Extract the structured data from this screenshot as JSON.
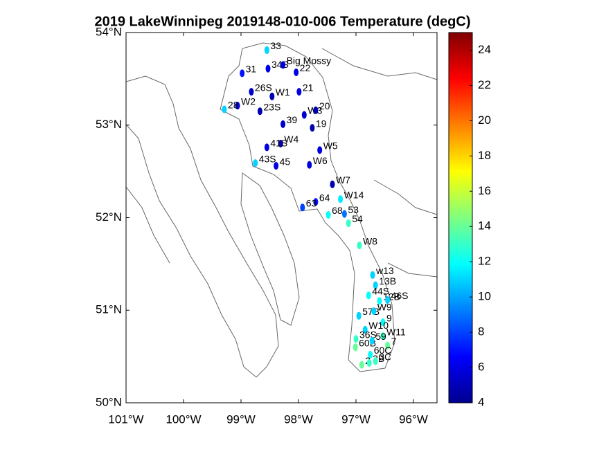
{
  "chart_data": {
    "type": "scatter",
    "title": "2019 LakeWinnipeg 2019148-010-006 Temperature (degC)",
    "xlim": [
      -101,
      -95.59
    ],
    "ylim": [
      50,
      54
    ],
    "xticks": [
      {
        "value": -101,
        "label": "101°W"
      },
      {
        "value": -100,
        "label": "100°W"
      },
      {
        "value": -99,
        "label": "99°W"
      },
      {
        "value": -98,
        "label": "98°W"
      },
      {
        "value": -97,
        "label": "97°W"
      },
      {
        "value": -96,
        "label": "96°W"
      }
    ],
    "yticks": [
      {
        "value": 50,
        "label": "50°N"
      },
      {
        "value": 51,
        "label": "51°N"
      },
      {
        "value": 52,
        "label": "52°N"
      },
      {
        "value": 53,
        "label": "53°N"
      },
      {
        "value": 54,
        "label": "54°N"
      }
    ],
    "clim": [
      4,
      25
    ],
    "cticks": [
      4,
      6,
      8,
      10,
      12,
      14,
      16,
      18,
      20,
      22,
      24
    ],
    "colormap": "jet",
    "point_labels": [
      "33",
      "34S",
      "Big Mossy",
      "22",
      "31",
      "26S",
      "W1",
      "21",
      "W2",
      "28",
      "23S",
      "W3",
      "20",
      "39",
      "19",
      "W4",
      "41S",
      "W5",
      "43S",
      "45",
      "W6",
      "W7",
      "W14",
      "64",
      "63",
      "68",
      "53",
      "54",
      "W8",
      "w13",
      "13B",
      "44S",
      "12B",
      "46S",
      "57B",
      "W9",
      "9",
      "W10",
      "W11",
      "36S",
      "60B",
      "59",
      "7",
      "60C",
      "2",
      "3B",
      "3C"
    ],
    "x": [
      -98.55,
      -98.53,
      -98.27,
      -98.04,
      -98.98,
      -98.82,
      -98.46,
      -97.99,
      -99.06,
      -99.29,
      -98.67,
      -97.9,
      -97.7,
      -98.27,
      -97.76,
      -98.31,
      -98.55,
      -97.63,
      -98.75,
      -98.39,
      -97.81,
      -97.41,
      -97.27,
      -97.7,
      -97.93,
      -97.48,
      -97.2,
      -97.13,
      -96.94,
      -96.71,
      -96.66,
      -96.78,
      -96.59,
      -96.45,
      -96.95,
      -96.69,
      -96.53,
      -96.84,
      -96.53,
      -97.0,
      -97.01,
      -96.72,
      -96.45,
      -96.75,
      -96.9,
      -96.77,
      -96.66
    ],
    "y": [
      53.81,
      53.61,
      53.65,
      53.57,
      53.56,
      53.36,
      53.31,
      53.36,
      53.21,
      53.17,
      53.15,
      53.11,
      53.16,
      53.01,
      52.97,
      52.8,
      52.76,
      52.73,
      52.59,
      52.56,
      52.57,
      52.36,
      52.2,
      52.17,
      52.11,
      52.03,
      52.04,
      51.94,
      51.7,
      51.38,
      51.27,
      51.16,
      51.1,
      51.11,
      50.94,
      50.99,
      50.87,
      50.79,
      50.72,
      50.69,
      50.6,
      50.67,
      50.62,
      50.52,
      50.41,
      50.43,
      50.45
    ],
    "values": [
      11,
      6,
      6,
      6,
      7,
      5.5,
      5,
      6,
      6,
      11,
      5,
      5.5,
      5,
      5.5,
      5,
      5,
      6,
      6,
      11,
      6,
      6,
      5,
      11.5,
      7,
      8,
      12,
      9,
      13,
      13,
      11,
      11,
      12,
      12,
      11,
      11,
      11,
      12,
      11,
      13,
      13,
      14,
      11,
      14,
      12,
      14,
      13,
      13
    ]
  }
}
